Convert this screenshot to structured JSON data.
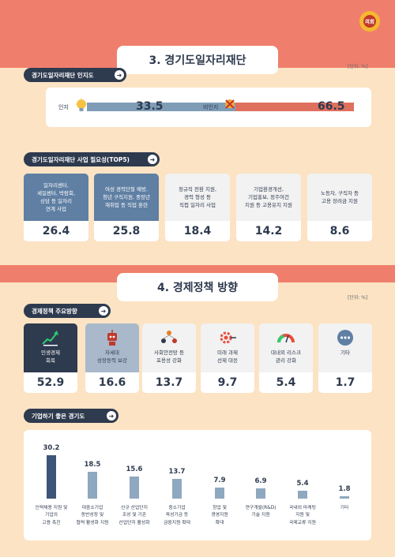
{
  "seal_text": "의회",
  "section3": {
    "title": "3. 경기도일자리재단",
    "unit": "[단위: %]",
    "awareness_label": "경기도일자리재단 인지도",
    "tops_label": "경기도일자리재단 사업 필요성(TOP5)"
  },
  "section4": {
    "title": "4. 경제정책 방향",
    "unit": "[단위: %]",
    "policy_label": "경제정책 주요방향",
    "biz_label": "기업하기 좋은 경기도"
  },
  "colors": {
    "navy": "#2e3a4e",
    "coral": "#ef7f6c",
    "peach": "#fbe3c4",
    "bar_blue": "#7f9db6",
    "bar_red": "#e0705e",
    "card_blue": "#5f7fa3"
  },
  "chart_data": [
    {
      "type": "bar",
      "title": "경기도일자리재단 인지도",
      "categories": [
        "인지",
        "비인지"
      ],
      "values": [
        33.5,
        66.5
      ],
      "value_labels": [
        "33.5",
        "66.5"
      ],
      "icons": [
        "lightbulb-icon",
        "crossed-lightbulb-icon"
      ],
      "ylim": [
        0,
        100
      ]
    },
    {
      "type": "bar",
      "title": "경기도일자리재단 사업 필요성(TOP5)",
      "categories": [
        "일자리센터,\n세일센터, 박람회,\n상담 등 일자리\n연계 사업",
        "여성 경력단절 예방,\n청년 구직지원, 중장년\n재취업 등 직업 훈련",
        "정규직 전환 지원,\n경력 형성 등\n직접 일자리 사업",
        "기업환경개선,\n기업홍보, 정주여건\n지원 등 고용유지 지원",
        "노동자, 구직자 등\n고용 장려금 지원"
      ],
      "values": [
        26.4,
        25.8,
        18.4,
        14.2,
        8.6
      ],
      "value_labels": [
        "26.4",
        "25.8",
        "18.4",
        "14.2",
        "8.6"
      ]
    },
    {
      "type": "bar",
      "title": "경제정책 주요방향",
      "categories": [
        "민생경제\n회복",
        "차세대\n성장동력 보강",
        "사회안전망 등\n포용성 강화",
        "미래 과제\n선제 대응",
        "대내외 리스크\n관리 강화",
        "기타"
      ],
      "values": [
        52.9,
        16.6,
        13.7,
        9.7,
        5.4,
        1.7
      ],
      "value_labels": [
        "52.9",
        "16.6",
        "13.7",
        "9.7",
        "5.4",
        "1.7"
      ],
      "icons": [
        "rising-chart-icon",
        "robot-icon",
        "people-network-icon",
        "gear-target-icon",
        "risk-gauge-icon",
        "more-dots-icon"
      ]
    },
    {
      "type": "bar",
      "title": "기업하기 좋은 경기도",
      "categories": [
        "인력채용 지원 및\n기업의\n고용 촉진",
        "대중소기업\n동반성장 및\n협력 활성화 지원",
        "신규 산업단지\n조성 및 기존\n산업단지 활성화",
        "중소기업\n육성기금 등\n금융지원 확대",
        "창업 및\n경영지원\n확대",
        "연구개발(R&D)\n기술 지원",
        "국내외 마케팅\n지원 및\n국제교류 지원",
        "기타"
      ],
      "values": [
        30.2,
        18.5,
        15.6,
        13.7,
        7.9,
        6.9,
        5.4,
        1.8
      ],
      "value_labels": [
        "30.2",
        "18.5",
        "15.6",
        "13.7",
        "7.9",
        "6.9",
        "5.4",
        "1.8"
      ],
      "ylim": [
        0,
        30.2
      ]
    }
  ]
}
